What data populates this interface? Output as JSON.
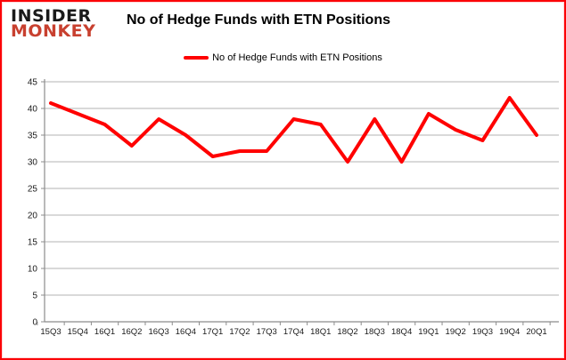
{
  "branding": {
    "logo_line1": "INSIDER",
    "logo_line2": "MONKEY",
    "logo_color1": "#1a1a1a",
    "logo_color2": "#c8402f"
  },
  "header": {
    "title": "No of Hedge Funds with ETN Positions"
  },
  "legend": {
    "label": "No of Hedge Funds with ETN Positions",
    "line_color": "#ff0000"
  },
  "colors": {
    "series_line": "#ff0000",
    "gridline": "#b3b3b3",
    "axis": "#8c8c8c",
    "axis_text": "#1a1a1a",
    "frame_border": "#fb0207",
    "background": "#ffffff"
  },
  "chart_data": {
    "type": "line",
    "title": "No of Hedge Funds with ETN Positions",
    "categories": [
      "15Q3",
      "15Q4",
      "16Q1",
      "16Q2",
      "16Q3",
      "16Q4",
      "17Q1",
      "17Q2",
      "17Q3",
      "17Q4",
      "18Q1",
      "18Q2",
      "18Q3",
      "18Q4",
      "19Q1",
      "19Q2",
      "19Q3",
      "19Q4",
      "20Q1"
    ],
    "series": [
      {
        "name": "No of Hedge Funds with ETN Positions",
        "color": "#ff0000",
        "values": [
          41,
          39,
          37,
          33,
          38,
          35,
          31,
          32,
          32,
          38,
          37,
          30,
          38,
          30,
          39,
          36,
          34,
          42,
          35
        ]
      }
    ],
    "xlabel": "",
    "ylabel": "",
    "ylim": [
      0,
      45
    ],
    "yticks": [
      0,
      5,
      10,
      15,
      20,
      25,
      30,
      35,
      40,
      45
    ],
    "grid": "horizontal",
    "legend_position": "top-center"
  }
}
